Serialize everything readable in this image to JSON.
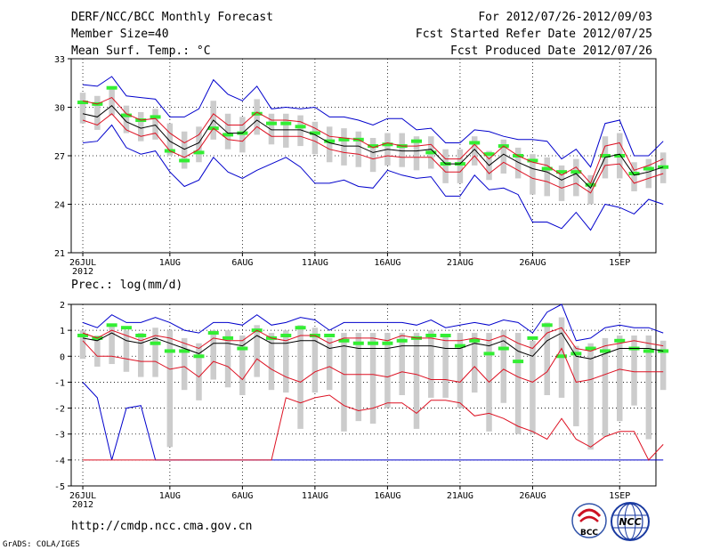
{
  "header": {
    "title": "DERF/NCC/BCC Monthly Forecast",
    "member_size": "Member Size=40",
    "period": "For 2012/07/26-2012/09/03",
    "fcst_started": "Fcst Started Refer Date 2012/07/25",
    "fcst_produced": "Fcst Produced Date 2012/07/26"
  },
  "footer": {
    "url": "http://cmdp.ncc.cma.gov.cn",
    "credit": "GrADS: COLA/IGES",
    "logo_bcc": "BCC",
    "logo_ncc": "NCC"
  },
  "colors": {
    "box": "#cccccc",
    "green": "#33ee33",
    "blue": "#0000cc",
    "red": "#dd1122",
    "black": "#000000"
  },
  "chart_data": [
    {
      "type": "line",
      "title": "Mean Surf. Temp.: °C",
      "ylim": [
        21,
        33
      ],
      "yticks": [
        21,
        24,
        27,
        30,
        33
      ],
      "xlim": [
        -0.8,
        39.5
      ],
      "xticks": [
        {
          "day": 0,
          "label": "26JUL",
          "sub": "2012"
        },
        {
          "day": 6,
          "label": "1AUG"
        },
        {
          "day": 11,
          "label": "6AUG"
        },
        {
          "day": 16,
          "label": "11AUG"
        },
        {
          "day": 21,
          "label": "16AUG"
        },
        {
          "day": 26,
          "label": "21AUG"
        },
        {
          "day": 31,
          "label": "26AUG"
        },
        {
          "day": 37,
          "label": "1SEP"
        }
      ],
      "grid": "dotted",
      "series": [
        {
          "name": "max",
          "color": "blue",
          "values": [
            31.4,
            31.3,
            31.9,
            30.7,
            30.6,
            30.5,
            29.4,
            29.4,
            29.9,
            31.7,
            30.8,
            30.4,
            31.3,
            29.9,
            30.0,
            29.9,
            30.0,
            29.4,
            29.4,
            29.2,
            28.9,
            29.3,
            29.3,
            28.6,
            28.7,
            27.8,
            27.8,
            28.6,
            28.5,
            28.2,
            28.0,
            28.0,
            27.9,
            26.8,
            27.4,
            26.3,
            29.0,
            29.2,
            27.0,
            27.0,
            27.9
          ]
        },
        {
          "name": "upper",
          "color": "red",
          "values": [
            30.4,
            30.2,
            30.6,
            29.6,
            29.2,
            29.3,
            28.4,
            27.8,
            28.3,
            29.6,
            28.9,
            28.9,
            29.7,
            29.2,
            29.2,
            29.1,
            28.7,
            28.2,
            28.1,
            28.0,
            27.5,
            27.8,
            27.6,
            27.6,
            27.7,
            26.8,
            26.8,
            27.7,
            26.8,
            27.6,
            27.0,
            26.6,
            26.4,
            25.8,
            26.3,
            25.3,
            27.6,
            27.8,
            26.1,
            26.4,
            26.8
          ]
        },
        {
          "name": "mean",
          "color": "black",
          "values": [
            29.6,
            29.4,
            30.1,
            29.1,
            28.7,
            28.9,
            27.9,
            27.4,
            27.8,
            29.2,
            28.4,
            28.4,
            29.2,
            28.6,
            28.6,
            28.6,
            28.3,
            27.8,
            27.6,
            27.6,
            27.2,
            27.4,
            27.3,
            27.3,
            27.4,
            26.5,
            26.5,
            27.4,
            26.4,
            27.1,
            26.6,
            26.2,
            26.0,
            25.5,
            25.9,
            25.0,
            26.9,
            27.1,
            25.8,
            26.0,
            26.3
          ]
        },
        {
          "name": "lower",
          "color": "red",
          "values": [
            29.2,
            28.9,
            29.6,
            28.6,
            28.2,
            28.4,
            27.3,
            26.9,
            27.4,
            28.7,
            28.0,
            27.9,
            28.8,
            28.2,
            28.2,
            28.2,
            27.9,
            27.4,
            27.2,
            27.1,
            26.8,
            27.0,
            26.9,
            26.9,
            26.9,
            26.0,
            26.0,
            27.0,
            25.9,
            26.6,
            26.1,
            25.6,
            25.4,
            25.0,
            25.3,
            24.7,
            26.4,
            26.5,
            25.3,
            25.6,
            25.9
          ]
        },
        {
          "name": "min",
          "color": "blue",
          "values": [
            27.8,
            27.9,
            28.9,
            27.5,
            27.1,
            27.3,
            26.0,
            25.1,
            25.5,
            26.9,
            26.0,
            25.6,
            26.1,
            26.5,
            26.9,
            26.3,
            25.3,
            25.3,
            25.5,
            25.1,
            25.0,
            26.1,
            25.8,
            25.6,
            25.7,
            24.5,
            24.5,
            25.8,
            24.9,
            25.0,
            24.6,
            22.9,
            22.9,
            22.5,
            23.5,
            22.4,
            24.0,
            23.8,
            23.4,
            24.3,
            24.0
          ]
        }
      ],
      "boxes_low": [
        29.0,
        28.6,
        29.5,
        28.4,
        27.9,
        28.0,
        27.0,
        26.2,
        26.6,
        28.0,
        27.4,
        27.2,
        28.3,
        27.7,
        27.5,
        27.6,
        27.1,
        26.6,
        26.4,
        26.3,
        26.0,
        26.4,
        26.3,
        26.1,
        26.2,
        25.3,
        25.3,
        26.4,
        25.5,
        25.9,
        25.6,
        24.6,
        24.5,
        24.2,
        24.5,
        24.0,
        25.6,
        25.6,
        24.8,
        25.0,
        25.3
      ],
      "boxes_high": [
        30.9,
        30.7,
        31.3,
        30.1,
        29.7,
        29.9,
        29.0,
        28.5,
        28.8,
        30.4,
        29.6,
        29.4,
        30.5,
        29.6,
        29.6,
        29.5,
        29.1,
        28.8,
        28.7,
        28.5,
        28.1,
        28.4,
        28.4,
        28.2,
        28.2,
        27.4,
        27.4,
        28.2,
        27.3,
        28.0,
        27.5,
        27.1,
        26.9,
        26.4,
        26.8,
        25.8,
        28.2,
        28.4,
        26.6,
        26.8,
        27.2
      ],
      "green_values": [
        30.3,
        30.2,
        31.2,
        29.5,
        29.2,
        29.4,
        27.3,
        26.7,
        27.2,
        28.7,
        28.3,
        28.4,
        29.6,
        29.0,
        29.0,
        28.8,
        28.4,
        27.9,
        28.0,
        28.0,
        27.6,
        27.7,
        27.6,
        27.9,
        27.2,
        26.5,
        26.5,
        27.8,
        27.1,
        27.6,
        27.0,
        26.7,
        26.2,
        26.0,
        26.0,
        25.2,
        27.0,
        27.0,
        25.9,
        26.2,
        26.3
      ]
    },
    {
      "type": "line",
      "title": "Prec.: log(mm/d)",
      "ylim": [
        -5,
        2
      ],
      "yticks": [
        -5,
        -4,
        -3,
        -2,
        -1,
        0,
        1,
        2
      ],
      "xlim": [
        -0.8,
        39.5
      ],
      "xticks": [
        {
          "day": 0,
          "label": "26JUL",
          "sub": "2012"
        },
        {
          "day": 6,
          "label": "1AUG"
        },
        {
          "day": 11,
          "label": "6AUG"
        },
        {
          "day": 16,
          "label": "11AUG"
        },
        {
          "day": 21,
          "label": "16AUG"
        },
        {
          "day": 26,
          "label": "21AUG"
        },
        {
          "day": 31,
          "label": "26AUG"
        },
        {
          "day": 37,
          "label": "1SEP"
        }
      ],
      "grid": "dotted",
      "series": [
        {
          "name": "max",
          "color": "blue",
          "values": [
            1.3,
            1.1,
            1.6,
            1.3,
            1.3,
            1.5,
            1.3,
            1.0,
            0.9,
            1.3,
            1.3,
            1.2,
            1.6,
            1.2,
            1.3,
            1.5,
            1.4,
            1.0,
            1.3,
            1.3,
            1.3,
            1.3,
            1.3,
            1.2,
            1.4,
            1.1,
            1.2,
            1.3,
            1.2,
            1.4,
            1.3,
            0.9,
            1.7,
            2.0,
            0.6,
            0.7,
            1.1,
            1.2,
            1.1,
            1.1,
            0.9
          ]
        },
        {
          "name": "upper",
          "color": "red",
          "values": [
            0.9,
            0.7,
            1.0,
            0.8,
            0.6,
            0.8,
            0.7,
            0.5,
            0.3,
            0.7,
            0.6,
            0.6,
            1.0,
            0.7,
            0.6,
            0.8,
            0.8,
            0.5,
            0.7,
            0.7,
            0.7,
            0.6,
            0.8,
            0.7,
            0.7,
            0.6,
            0.6,
            0.7,
            0.6,
            0.8,
            0.5,
            0.3,
            0.9,
            1.1,
            0.3,
            0.2,
            0.4,
            0.5,
            0.6,
            0.5,
            0.4
          ]
        },
        {
          "name": "mean",
          "color": "black",
          "values": [
            0.7,
            0.6,
            0.9,
            0.6,
            0.5,
            0.7,
            0.5,
            0.3,
            0.1,
            0.5,
            0.5,
            0.4,
            0.8,
            0.5,
            0.5,
            0.6,
            0.6,
            0.3,
            0.4,
            0.3,
            0.3,
            0.3,
            0.4,
            0.4,
            0.4,
            0.3,
            0.3,
            0.5,
            0.4,
            0.6,
            0.2,
            0.0,
            0.6,
            0.9,
            0.0,
            -0.1,
            0.1,
            0.3,
            0.3,
            0.3,
            0.2
          ]
        },
        {
          "name": "lower",
          "color": "red",
          "values": [
            0.6,
            0.0,
            0.0,
            -0.1,
            -0.2,
            -0.2,
            -0.5,
            -0.4,
            -0.8,
            -0.2,
            -0.4,
            -0.9,
            -0.1,
            -0.5,
            -0.8,
            -1.0,
            -0.6,
            -0.4,
            -0.7,
            -0.7,
            -0.7,
            -0.8,
            -0.6,
            -0.7,
            -0.9,
            -0.9,
            -1.0,
            -0.4,
            -1.0,
            -0.5,
            -0.8,
            -1.0,
            -0.6,
            0.3,
            -1.0,
            -0.9,
            -0.7,
            -0.5,
            -0.6,
            -0.6,
            -0.6
          ]
        },
        {
          "name": "min",
          "color": "blue",
          "values": [
            -1.0,
            -1.6,
            -4.0,
            -2.0,
            -1.9,
            -4.0,
            -4.0,
            -4.0,
            -4.0,
            -4.0,
            -4.0,
            -4.0,
            -4.0,
            -4.0,
            -4.0,
            -4.0,
            -4.0,
            -4.0,
            -4.0,
            -4.0,
            -4.0,
            -4.0,
            -4.0,
            -4.0,
            -4.0,
            -4.0,
            -4.0,
            -4.0,
            -4.0,
            -4.0,
            -4.0,
            -4.0,
            -4.0,
            -4.0,
            -4.0,
            -4.0,
            -4.0,
            -4.0,
            -4.0,
            -4.0,
            -4.0
          ]
        },
        {
          "name": "lower2",
          "color": "red",
          "values": [
            -4.0,
            -4.0,
            -4.0,
            -4.0,
            -4.0,
            -4.0,
            -4.0,
            -4.0,
            -4.0,
            -4.0,
            -4.0,
            -4.0,
            -4.0,
            -4.0,
            -1.6,
            -1.8,
            -1.6,
            -1.5,
            -1.9,
            -2.1,
            -2.0,
            -1.8,
            -1.8,
            -2.2,
            -1.7,
            -1.7,
            -1.8,
            -2.3,
            -2.2,
            -2.4,
            -2.7,
            -2.9,
            -3.2,
            -2.4,
            -3.2,
            -3.5,
            -3.1,
            -2.9,
            -2.9,
            -4.0,
            -3.4
          ]
        }
      ],
      "boxes_low": [
        -0.1,
        -0.4,
        -0.3,
        -0.6,
        -0.8,
        -0.8,
        -3.5,
        -1.3,
        -1.7,
        -0.9,
        -1.2,
        -1.5,
        -0.8,
        -1.3,
        -1.4,
        -2.8,
        -1.4,
        -1.3,
        -2.9,
        -2.5,
        -2.6,
        -2.0,
        -1.5,
        -2.8,
        -1.6,
        -1.6,
        -2.0,
        -1.4,
        -2.9,
        -1.8,
        -3.0,
        -3.0,
        -1.5,
        -1.6,
        -2.7,
        -3.6,
        -3.1,
        -2.5,
        -1.9,
        -3.2,
        -1.3
      ],
      "boxes_high": [
        1.0,
        0.8,
        1.2,
        1.0,
        0.9,
        1.1,
        1.0,
        0.7,
        0.5,
        1.0,
        1.0,
        0.8,
        1.2,
        0.9,
        1.0,
        1.2,
        1.1,
        0.7,
        0.9,
        0.9,
        0.9,
        0.9,
        0.9,
        0.9,
        1.0,
        0.8,
        0.9,
        0.9,
        0.9,
        1.0,
        0.9,
        0.6,
        1.3,
        1.5,
        0.4,
        0.5,
        0.7,
        0.8,
        0.8,
        0.8,
        0.6
      ],
      "green_values": [
        0.8,
        0.7,
        1.2,
        1.1,
        0.8,
        0.5,
        0.2,
        0.2,
        0.0,
        0.9,
        0.7,
        0.3,
        1.0,
        0.7,
        0.8,
        1.1,
        0.8,
        0.8,
        0.6,
        0.5,
        0.5,
        0.5,
        0.6,
        0.7,
        0.8,
        0.8,
        0.4,
        0.6,
        0.1,
        0.3,
        -0.2,
        0.7,
        1.2,
        0.0,
        0.1,
        0.3,
        0.2,
        0.6,
        0.3,
        0.2,
        0.2
      ]
    }
  ]
}
